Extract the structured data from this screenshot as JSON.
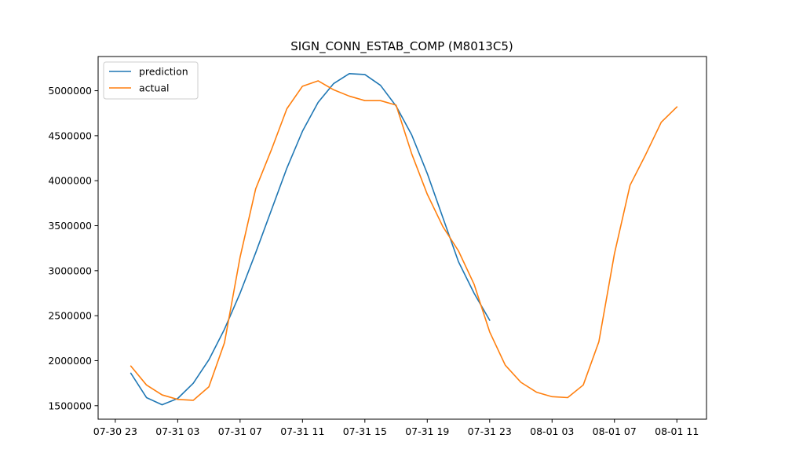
{
  "chart_data": {
    "type": "line",
    "title": "SIGN_CONN_ESTAB_COMP (M8013C5)",
    "xlabel": "",
    "ylabel": "",
    "x_unit": "hours",
    "x_ticks": [
      {
        "value": 0,
        "label": "07-30 23"
      },
      {
        "value": 4,
        "label": "07-31 03"
      },
      {
        "value": 8,
        "label": "07-31 07"
      },
      {
        "value": 12,
        "label": "07-31 11"
      },
      {
        "value": 16,
        "label": "07-31 15"
      },
      {
        "value": 20,
        "label": "07-31 19"
      },
      {
        "value": 24,
        "label": "07-31 23"
      },
      {
        "value": 28,
        "label": "08-01 03"
      },
      {
        "value": 32,
        "label": "08-01 07"
      },
      {
        "value": 36,
        "label": "08-01 11"
      }
    ],
    "y_ticks": [
      1500000,
      2000000,
      2500000,
      3000000,
      3500000,
      4000000,
      4500000,
      5000000
    ],
    "xlim": [
      -1.1,
      37.9
    ],
    "ylim": [
      1350000,
      5380000
    ],
    "grid": false,
    "legend_position": "upper-left",
    "series": [
      {
        "name": "prediction",
        "color": "#1f77b4",
        "x": [
          1,
          2,
          3,
          4,
          5,
          6,
          7,
          8,
          9,
          10,
          11,
          12,
          13,
          14,
          15,
          16,
          17,
          18,
          19,
          20,
          21,
          22,
          23,
          24
        ],
        "y": [
          1860000,
          1590000,
          1510000,
          1580000,
          1750000,
          2010000,
          2350000,
          2750000,
          3200000,
          3670000,
          4140000,
          4550000,
          4870000,
          5080000,
          5190000,
          5180000,
          5060000,
          4830000,
          4510000,
          4080000,
          3590000,
          3100000,
          2750000,
          2450000
        ]
      },
      {
        "name": "actual",
        "color": "#ff7f0e",
        "x": [
          1,
          2,
          3,
          4,
          5,
          6,
          7,
          8,
          9,
          10,
          11,
          12,
          13,
          14,
          15,
          16,
          17,
          18,
          19,
          20,
          21,
          22,
          23,
          24,
          25,
          26,
          27,
          28,
          29,
          30,
          31,
          32,
          33,
          34,
          35,
          36
        ],
        "y": [
          1940000,
          1730000,
          1620000,
          1570000,
          1560000,
          1710000,
          2200000,
          3150000,
          3910000,
          4340000,
          4800000,
          5050000,
          5110000,
          5010000,
          4940000,
          4890000,
          4890000,
          4840000,
          4300000,
          3850000,
          3490000,
          3220000,
          2850000,
          2320000,
          1950000,
          1760000,
          1650000,
          1600000,
          1590000,
          1730000,
          2210000,
          3190000,
          3950000,
          4290000,
          4650000,
          4820000
        ]
      }
    ]
  }
}
